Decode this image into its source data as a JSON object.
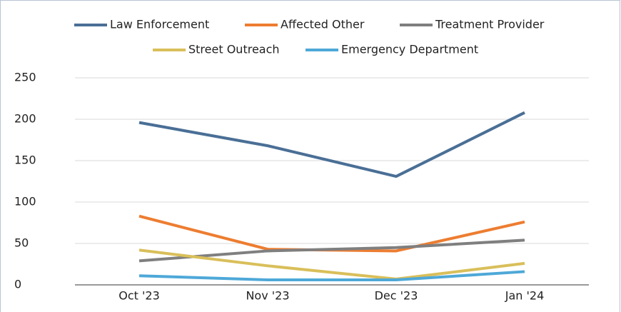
{
  "chart_data": {
    "type": "line",
    "categories": [
      "Oct '23",
      "Nov '23",
      "Dec '23",
      "Jan '24"
    ],
    "series": [
      {
        "name": "Law Enforcement",
        "color": "#4a6f96",
        "values": [
          196,
          168,
          131,
          208
        ]
      },
      {
        "name": "Affected Other",
        "color": "#ed7d31",
        "values": [
          83,
          43,
          41,
          76
        ]
      },
      {
        "name": "Treatment Provider",
        "color": "#7f7f7f",
        "values": [
          29,
          41,
          45,
          54
        ]
      },
      {
        "name": "Street Outreach",
        "color": "#d9bf5a",
        "values": [
          42,
          23,
          7,
          26
        ]
      },
      {
        "name": "Emergency Department",
        "color": "#4ea8d8",
        "values": [
          11,
          6,
          6,
          16
        ]
      }
    ],
    "ylim": [
      0,
      250
    ],
    "yticks": [
      0,
      50,
      100,
      150,
      200,
      250
    ],
    "grid": true,
    "legend": "top"
  }
}
